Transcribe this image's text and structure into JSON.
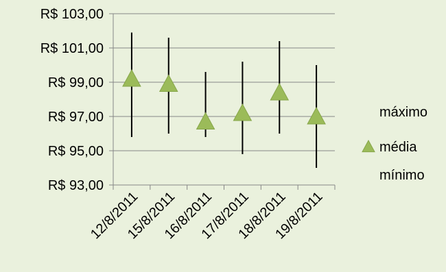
{
  "chart_data": {
    "type": "stock-hlc",
    "categories": [
      "12/8/2011",
      "15/8/2011",
      "16/8/2011",
      "17/8/2011",
      "18/8/2011",
      "19/8/2011"
    ],
    "series": [
      {
        "name": "máximo",
        "values": [
          101.9,
          101.6,
          99.6,
          100.2,
          101.4,
          100.0
        ]
      },
      {
        "name": "média",
        "values": [
          99.2,
          98.9,
          96.7,
          97.2,
          98.4,
          97.0
        ]
      },
      {
        "name": "mínimo",
        "values": [
          95.8,
          96.0,
          95.8,
          94.8,
          96.0,
          94.0
        ]
      }
    ],
    "ylim": [
      93,
      103
    ],
    "y_ticks": [
      93,
      95,
      97,
      99,
      101,
      103
    ],
    "y_tick_labels": [
      "R$ 93,00",
      "R$ 95,00",
      "R$ 97,00",
      "R$ 99,00",
      "R$ 101,00",
      "R$ 103,00"
    ],
    "gridlines": true,
    "legend_position": "right",
    "colors": {
      "marker": "#9bbb59",
      "marker_edge": "#87a64a",
      "line": "#000000",
      "grid": "#868686",
      "background": "#eaf1dd"
    }
  }
}
